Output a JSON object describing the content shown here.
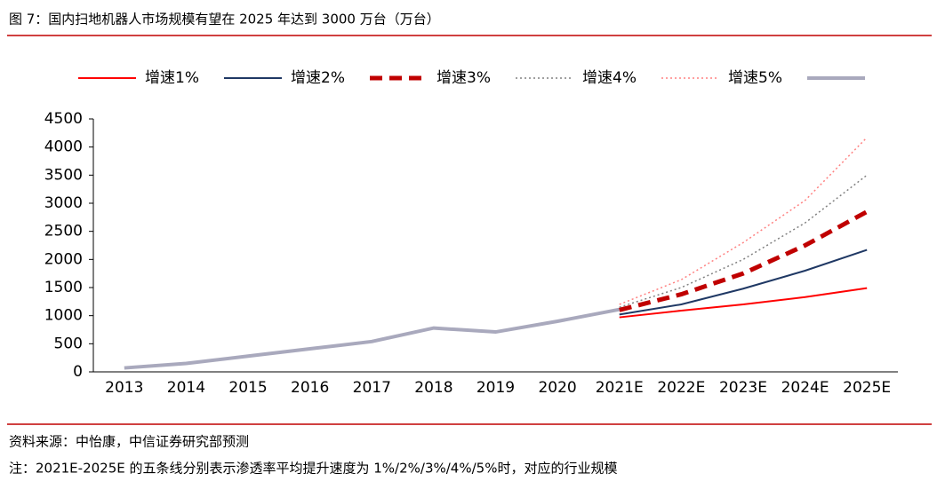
{
  "chart_data": {
    "type": "line",
    "title": "图 7：国内扫地机器人市场规模有望在 2025 年达到 3000 万台（万台）",
    "source": "资料来源：中怡康，中信证券研究部预测",
    "note": "注：2021E-2025E 的五条线分别表示渗透率平均提升速度为 1%/2%/3%/4%/5%时，对应的行业规模",
    "categories": [
      "2013",
      "2014",
      "2015",
      "2016",
      "2017",
      "2018",
      "2019",
      "2020",
      "2021E",
      "2022E",
      "2023E",
      "2024E",
      "2025E"
    ],
    "series": [
      {
        "name": "增速1%",
        "color": "#ff0000",
        "style": "solid",
        "values": [
          null,
          null,
          null,
          null,
          null,
          null,
          null,
          null,
          970,
          1090,
          1200,
          1330,
          1490
        ]
      },
      {
        "name": "增速2%",
        "color": "#1f3864",
        "style": "solid",
        "values": [
          null,
          null,
          null,
          null,
          null,
          null,
          null,
          null,
          1020,
          1200,
          1480,
          1800,
          2170
        ]
      },
      {
        "name": "增速3%",
        "color": "#c00000",
        "style": "dashed",
        "values": [
          null,
          null,
          null,
          null,
          null,
          null,
          null,
          null,
          1100,
          1380,
          1750,
          2250,
          2850
        ]
      },
      {
        "name": "增速4%",
        "color": "#808080",
        "style": "dotted",
        "values": [
          null,
          null,
          null,
          null,
          null,
          null,
          null,
          null,
          1150,
          1500,
          2000,
          2650,
          3500
        ]
      },
      {
        "name": "增速5%",
        "color": "#ff8080",
        "style": "dotted",
        "values": [
          null,
          null,
          null,
          null,
          null,
          null,
          null,
          null,
          1200,
          1640,
          2300,
          3050,
          4170
        ]
      },
      {
        "color": "#a9a9bd",
        "style": "solid",
        "values": [
          70,
          150,
          280,
          410,
          540,
          780,
          710,
          900,
          1110,
          null,
          null,
          null,
          null
        ]
      }
    ],
    "ylim": [
      0,
      4500
    ],
    "yticks": [
      0,
      500,
      1000,
      1500,
      2000,
      2500,
      3000,
      3500,
      4000,
      4500
    ],
    "grid": false
  }
}
